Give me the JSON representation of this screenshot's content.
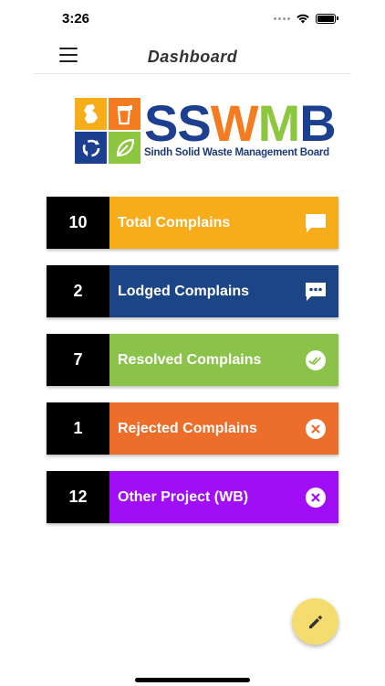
{
  "status_bar": {
    "time": "3:26"
  },
  "header": {
    "title": "Dashboard"
  },
  "logo": {
    "letters": [
      "S",
      "S",
      "W",
      "M",
      "B"
    ],
    "letter_colors": [
      "#1d3f8f",
      "#1d3f8f",
      "#f47b20",
      "#8dc63f",
      "#1d3f8f"
    ],
    "subtitle": "Sindh Solid Waste Management Board"
  },
  "cards": [
    {
      "count": "10",
      "label": "Total Complains",
      "color": "#f7ac1a",
      "icon": "chat-bubble-icon"
    },
    {
      "count": "2",
      "label": "Lodged Complains",
      "color": "#1c4588",
      "icon": "chat-dots-icon"
    },
    {
      "count": "7",
      "label": "Resolved Complains",
      "color": "#8bc34a",
      "icon": "double-check-icon"
    },
    {
      "count": "1",
      "label": "Rejected Complains",
      "color": "#ed6d2a",
      "icon": "close-circle-icon"
    },
    {
      "count": "12",
      "label": "Other Project (WB)",
      "color": "#a10ef5",
      "icon": "close-circle-icon"
    }
  ],
  "fab": {
    "icon": "pencil-icon",
    "color": "#f5dc6f"
  }
}
